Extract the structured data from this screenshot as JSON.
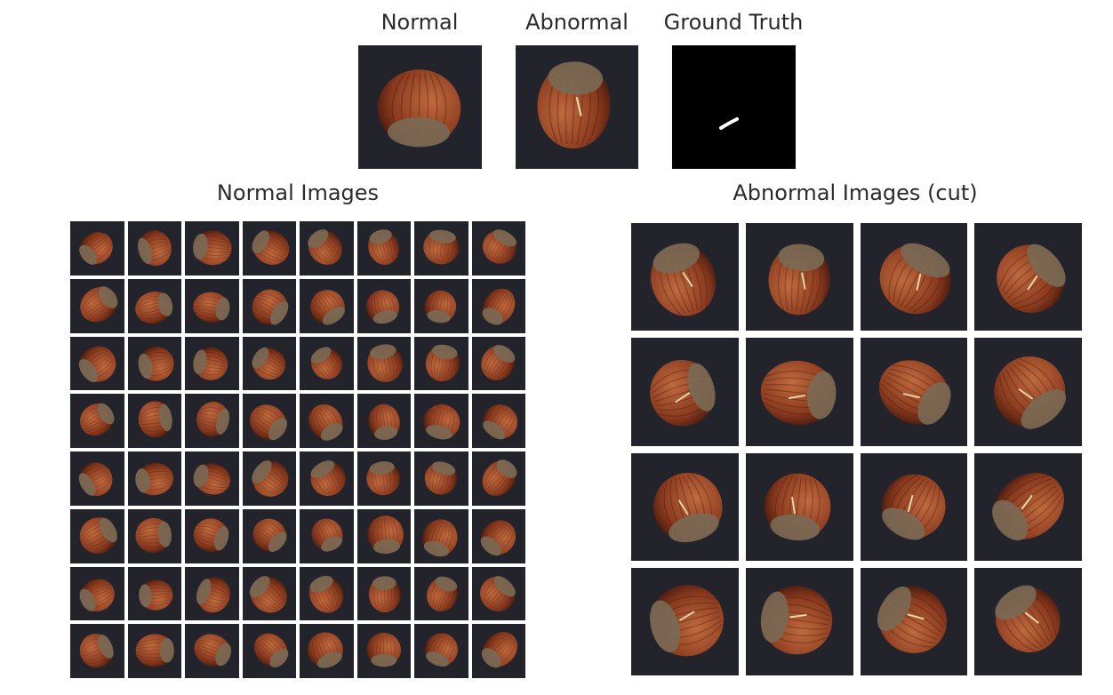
{
  "top": {
    "normal_label": "Normal",
    "abnormal_label": "Abnormal",
    "ground_truth_label": "Ground Truth"
  },
  "left_panel": {
    "title": "Normal Images",
    "rows": 8,
    "cols": 8
  },
  "right_panel": {
    "title": "Abnormal Images (cut)",
    "rows": 4,
    "cols": 4
  },
  "colors": {
    "background": "#23232b",
    "hazelnut": "#8a3a1e",
    "hazelnut_highlight": "#c06a3f",
    "cap": "#7a6a55",
    "mask_background": "#000000",
    "mask_defect": "#ffffff"
  }
}
